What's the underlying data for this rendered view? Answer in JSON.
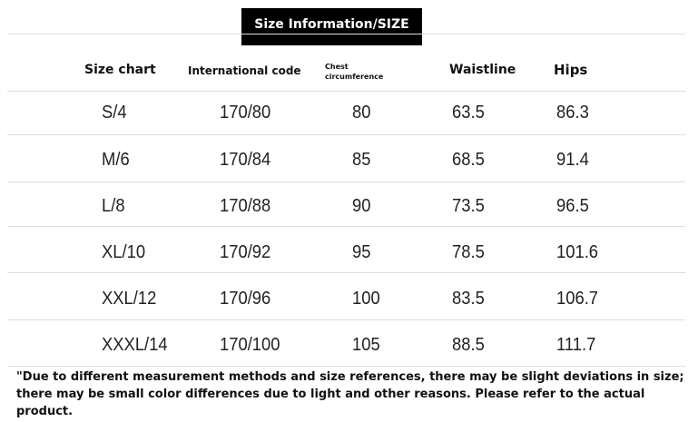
{
  "header": {
    "title": "Size Information/SIZE"
  },
  "table": {
    "columns": [
      "Size chart",
      "International code",
      "Chest circumference",
      "Waistline",
      "Hips"
    ],
    "rows": [
      [
        "S/4",
        "170/80",
        "80",
        "63.5",
        "86.3"
      ],
      [
        "M/6",
        "170/84",
        "85",
        "68.5",
        "91.4"
      ],
      [
        "L/8",
        "170/88",
        "90",
        "73.5",
        "96.5"
      ],
      [
        "XL/10",
        "170/92",
        "95",
        "78.5",
        "101.6"
      ],
      [
        "XXL/12",
        "170/96",
        "100",
        "83.5",
        "106.7"
      ],
      [
        "XXXL/14",
        "170/100",
        "105",
        "88.5",
        "111.7"
      ]
    ]
  },
  "note": "\"Due to different measurement methods and size references, there may be slight deviations in size; there may be small color differences due to light and other reasons. Please refer to the actual product."
}
